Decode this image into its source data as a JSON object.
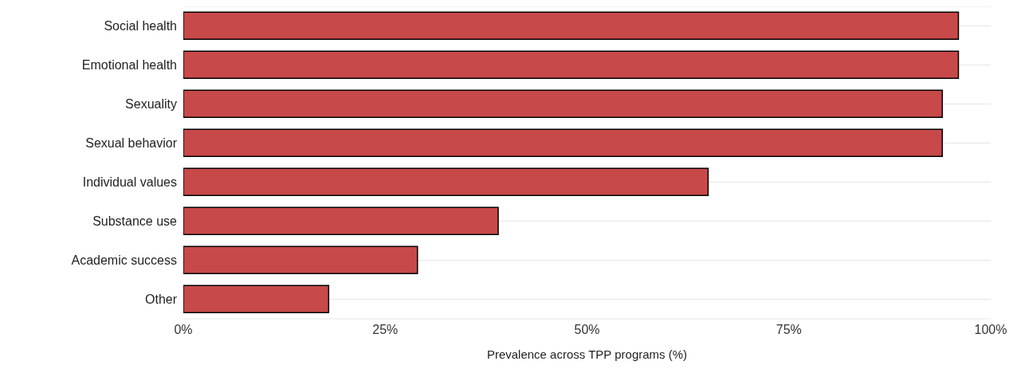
{
  "chart_data": {
    "type": "bar",
    "orientation": "horizontal",
    "xlabel": "Prevalence across TPP programs (%)",
    "categories": [
      "Social health",
      "Emotional health",
      "Sexuality",
      "Sexual behavior",
      "Individual values",
      "Substance use",
      "Academic success",
      "Other"
    ],
    "values": [
      96,
      96,
      94,
      94,
      65,
      39,
      29,
      18
    ],
    "color": "#c8494a",
    "xlim": [
      0,
      100
    ],
    "xticks": [
      {
        "value": 0,
        "label": "0%"
      },
      {
        "value": 25,
        "label": "25%"
      },
      {
        "value": 50,
        "label": "50%"
      },
      {
        "value": 75,
        "label": "75%"
      },
      {
        "value": 100,
        "label": "100%"
      }
    ],
    "grid": "y"
  }
}
